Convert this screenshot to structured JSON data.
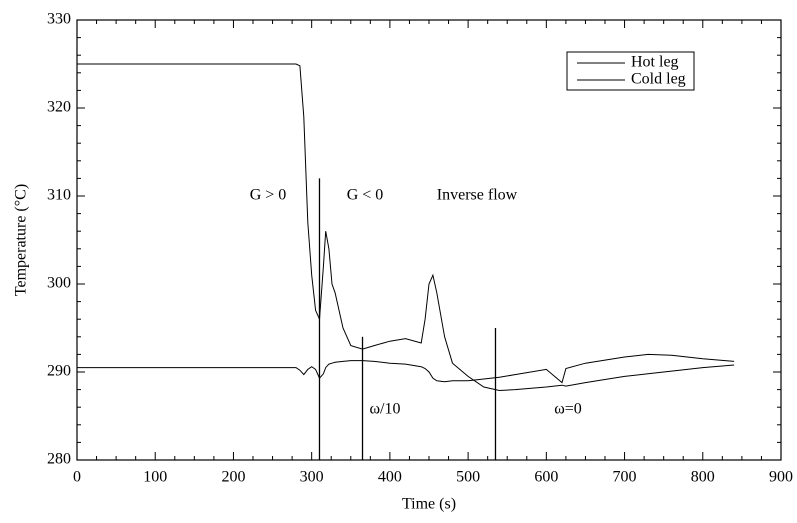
{
  "chart_data": {
    "type": "line",
    "xlabel": "Time (s)",
    "ylabel": "Temperature (°C)",
    "x": [
      0,
      50,
      100,
      150,
      200,
      250,
      280,
      285,
      290,
      295,
      300,
      305,
      310,
      315,
      318,
      322,
      326,
      330,
      340,
      350,
      365,
      380,
      400,
      420,
      440,
      445,
      450,
      455,
      460,
      470,
      480,
      500,
      520,
      540,
      560,
      600,
      620,
      625,
      650,
      700,
      730,
      760,
      800,
      840
    ],
    "series": [
      {
        "name": "Hot leg",
        "color": "#000000",
        "values": [
          325,
          325,
          325,
          325,
          325,
          325,
          325,
          324.8,
          319,
          307,
          301,
          297,
          296,
          302,
          306,
          304,
          300,
          299,
          295,
          293,
          292.6,
          293,
          293.5,
          293.8,
          293.3,
          296,
          300,
          301,
          299,
          294,
          291,
          289.5,
          288.3,
          287.9,
          288,
          288.3,
          288.5,
          288.4,
          288.8,
          289.5,
          289.8,
          290.1,
          290.5,
          290.8
        ]
      },
      {
        "name": "Cold leg",
        "color": "#000000",
        "values": [
          290.5,
          290.5,
          290.5,
          290.5,
          290.5,
          290.5,
          290.5,
          290.2,
          289.7,
          290.3,
          290.6,
          290.3,
          289.3,
          289.8,
          290.5,
          290.9,
          291,
          291.1,
          291.2,
          291.3,
          291.3,
          291.2,
          291,
          290.9,
          290.6,
          290.4,
          290,
          289.3,
          289,
          288.9,
          289,
          289,
          289.2,
          289.4,
          289.7,
          290.3,
          288.8,
          290.4,
          291,
          291.7,
          292,
          291.9,
          291.5,
          291.2
        ]
      }
    ],
    "vlines": [
      {
        "x": 310,
        "ymax": 312
      },
      {
        "x": 365,
        "ymax": 294
      },
      {
        "x": 535,
        "ymax": 295
      }
    ],
    "annotations": [
      "G > 0",
      "G < 0",
      "Inverse flow",
      "ω/10",
      "ω=0"
    ],
    "xlim": [
      0,
      900
    ],
    "xticks": [
      0,
      100,
      200,
      300,
      400,
      500,
      600,
      700,
      800,
      900
    ],
    "ylim": [
      280,
      330
    ],
    "yticks": [
      280,
      290,
      300,
      310,
      320,
      330
    ],
    "legend": "upper right",
    "grid": false
  }
}
